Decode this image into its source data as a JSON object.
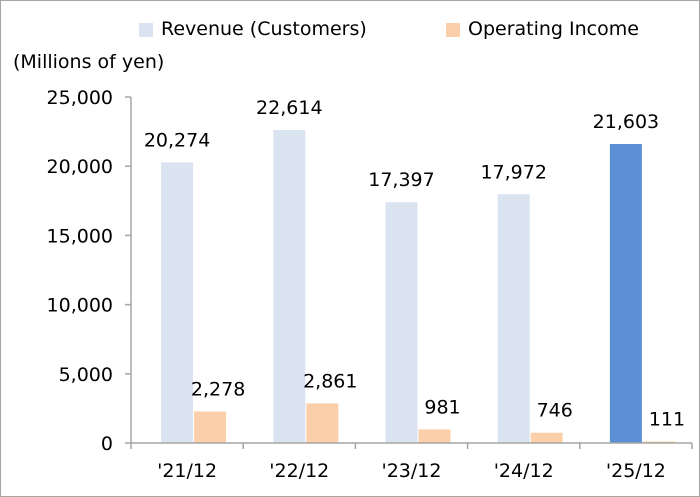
{
  "chart_data": {
    "type": "bar",
    "ylabel": "(Millions of yen)",
    "categories": [
      "'21/12",
      "'22/12",
      "'23/12",
      "'24/12",
      "'25/12"
    ],
    "series": [
      {
        "name": "Revenue (Customers)",
        "values": [
          20274,
          22614,
          17397,
          17972,
          21603
        ],
        "labels": [
          "20,274",
          "22,614",
          "17,397",
          "17,972",
          "21,603"
        ],
        "color": "#dae3f0",
        "highlight_color": "#5b8fd6",
        "highlight_index": 4
      },
      {
        "name": "Operating Income",
        "values": [
          2278,
          2861,
          981,
          746,
          111
        ],
        "labels": [
          "2,278",
          "2,861",
          "981",
          "746",
          "111"
        ],
        "color": "#fbcfa9"
      }
    ],
    "ylim": [
      0,
      25000
    ],
    "yticks": [
      0,
      5000,
      10000,
      15000,
      20000,
      25000
    ],
    "ytick_labels": [
      "0",
      "5,000",
      "10,000",
      "15,000",
      "20,000",
      "25,000"
    ],
    "grid": false,
    "legend": "top"
  }
}
